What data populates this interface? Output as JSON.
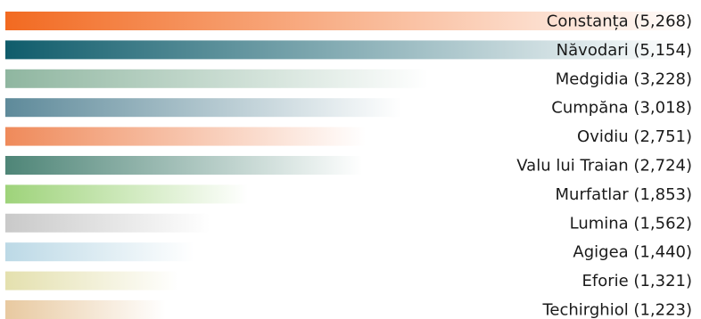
{
  "chart_data": {
    "type": "bar",
    "orientation": "horizontal",
    "categories": [
      "Constanța",
      "Năvodari",
      "Medgidia",
      "Cumpăna",
      "Ovidiu",
      "Valu lui Traian",
      "Murfatlar",
      "Lumina",
      "Agigea",
      "Eforie",
      "Techirghiol"
    ],
    "values": [
      5268,
      5154,
      3228,
      3018,
      2751,
      2724,
      1853,
      1562,
      1440,
      1321,
      1223
    ],
    "labels": [
      "Constanța (5,268)",
      "Năvodari (5,154)",
      "Medgidia (3,228)",
      "Cumpăna (3,018)",
      "Ovidiu (2,751)",
      "Valu lui Traian (2,724)",
      "Murfatlar (1,853)",
      "Lumina (1,562)",
      "Agigea (1,440)",
      "Eforie (1,321)",
      "Techirghiol (1,223)"
    ],
    "colors": [
      "#f26a21",
      "#0f5c6b",
      "#8fb6a0",
      "#5e8a9a",
      "#ef8a5a",
      "#4e8577",
      "#9ed37a",
      "#c9c9c9",
      "#bcd9e6",
      "#e4e0ae",
      "#e8c9a0"
    ],
    "title": "",
    "xlabel": "",
    "ylabel": "",
    "grid": false,
    "legend": "none"
  }
}
